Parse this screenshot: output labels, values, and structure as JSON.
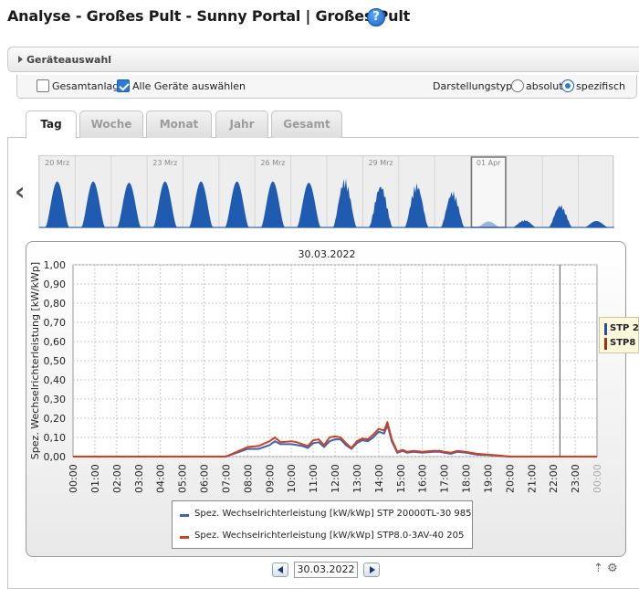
{
  "page": {
    "title": "Analyse - Großes Pult - Sunny Portal | Großes Pult",
    "help_icon": "question-mark-icon"
  },
  "device_selection": {
    "label": "Geräteauswahl"
  },
  "options": {
    "total_system_label": "Gesamtanlage",
    "total_system_checked": false,
    "select_all_label": "Alle Geräte auswählen",
    "select_all_checked": true,
    "display_type_label": "Darstellungstyp:",
    "absolute_label": "absolut",
    "specific_label": "spezifisch",
    "selected_display_type": "spezifisch"
  },
  "tabs": [
    {
      "label": "Tag",
      "active": true
    },
    {
      "label": "Woche",
      "active": false
    },
    {
      "label": "Monat",
      "active": false
    },
    {
      "label": "Jahr",
      "active": false
    },
    {
      "label": "Gesamt",
      "active": false
    }
  ],
  "overview": {
    "date_labels": [
      "20 Mrz",
      "23 Mrz",
      "26 Mrz",
      "29 Mrz",
      "01 Apr"
    ],
    "fill_color": "#1f5bb0",
    "day_peaks": [
      0.72,
      0.72,
      0.7,
      0.72,
      0.72,
      0.72,
      0.72,
      0.7,
      0.78,
      0.68,
      0.7,
      0.58,
      0.1,
      0.12,
      0.36,
      0.1
    ],
    "selected_day_index": 12,
    "prev_icon": "chevron-left-icon"
  },
  "chart_data": {
    "type": "line",
    "title": "30.03.2022",
    "ylabel": "Spez. Wechselrichterleistung [kW/kWp]",
    "ylim": [
      0,
      1
    ],
    "yticks": [
      "0,00",
      "0,10",
      "0,20",
      "0,30",
      "0,40",
      "0,50",
      "0,60",
      "0,70",
      "0,80",
      "0,90",
      "1,00"
    ],
    "x": [
      "00:00",
      "01:00",
      "02:00",
      "03:00",
      "04:00",
      "05:00",
      "06:00",
      "07:00",
      "08:00",
      "09:00",
      "10:00",
      "11:00",
      "12:00",
      "13:00",
      "14:00",
      "15:00",
      "16:00",
      "17:00",
      "18:00",
      "19:00",
      "20:00",
      "21:00",
      "22:00",
      "23:00",
      "00:00"
    ],
    "x_last_tick_faded": true,
    "marker_hour": 22.3,
    "series": [
      {
        "name": "Spez. Wechselrichterleistung [kW/kWp] STP 20000TL-30 985",
        "color": "#3a64b8",
        "points": [
          [
            0,
            0
          ],
          [
            7,
            0
          ],
          [
            7.5,
            0.02
          ],
          [
            8,
            0.04
          ],
          [
            8.5,
            0.04
          ],
          [
            9,
            0.06
          ],
          [
            9.25,
            0.08
          ],
          [
            9.5,
            0.065
          ],
          [
            10,
            0.065
          ],
          [
            10.25,
            0.06
          ],
          [
            10.5,
            0.055
          ],
          [
            10.75,
            0.045
          ],
          [
            11,
            0.07
          ],
          [
            11.25,
            0.075
          ],
          [
            11.5,
            0.05
          ],
          [
            11.75,
            0.08
          ],
          [
            12,
            0.09
          ],
          [
            12.25,
            0.09
          ],
          [
            12.5,
            0.06
          ],
          [
            12.75,
            0.04
          ],
          [
            13,
            0.07
          ],
          [
            13.25,
            0.085
          ],
          [
            13.5,
            0.08
          ],
          [
            13.75,
            0.1
          ],
          [
            14,
            0.13
          ],
          [
            14.25,
            0.12
          ],
          [
            14.4,
            0.165
          ],
          [
            14.6,
            0.08
          ],
          [
            14.85,
            0.02
          ],
          [
            15.1,
            0.03
          ],
          [
            15.3,
            0.02
          ],
          [
            15.6,
            0.025
          ],
          [
            16,
            0.02
          ],
          [
            16.5,
            0.025
          ],
          [
            16.8,
            0.025
          ],
          [
            17,
            0.02
          ],
          [
            17.3,
            0.015
          ],
          [
            17.6,
            0.025
          ],
          [
            18,
            0.02
          ],
          [
            18.5,
            0.01
          ],
          [
            19,
            0.008
          ],
          [
            19.5,
            0.004
          ],
          [
            20,
            0
          ],
          [
            24,
            0
          ]
        ]
      },
      {
        "name": "Spez. Wechselrichterleistung [kW/kWp] STP8.0-3AV-40 205",
        "color": "#d24020",
        "points": [
          [
            0,
            0
          ],
          [
            7,
            0
          ],
          [
            7.5,
            0.025
          ],
          [
            8,
            0.05
          ],
          [
            8.5,
            0.055
          ],
          [
            9,
            0.08
          ],
          [
            9.25,
            0.1
          ],
          [
            9.5,
            0.075
          ],
          [
            10,
            0.08
          ],
          [
            10.25,
            0.075
          ],
          [
            10.5,
            0.065
          ],
          [
            10.75,
            0.055
          ],
          [
            11,
            0.085
          ],
          [
            11.25,
            0.09
          ],
          [
            11.5,
            0.06
          ],
          [
            11.75,
            0.1
          ],
          [
            12,
            0.105
          ],
          [
            12.25,
            0.1
          ],
          [
            12.5,
            0.07
          ],
          [
            12.75,
            0.045
          ],
          [
            13,
            0.08
          ],
          [
            13.25,
            0.095
          ],
          [
            13.5,
            0.09
          ],
          [
            13.75,
            0.115
          ],
          [
            14,
            0.145
          ],
          [
            14.25,
            0.135
          ],
          [
            14.4,
            0.18
          ],
          [
            14.6,
            0.09
          ],
          [
            14.85,
            0.025
          ],
          [
            15.1,
            0.035
          ],
          [
            15.3,
            0.025
          ],
          [
            15.6,
            0.03
          ],
          [
            16,
            0.025
          ],
          [
            16.5,
            0.03
          ],
          [
            16.8,
            0.03
          ],
          [
            17,
            0.025
          ],
          [
            17.3,
            0.02
          ],
          [
            17.6,
            0.03
          ],
          [
            18,
            0.025
          ],
          [
            18.5,
            0.015
          ],
          [
            19,
            0.01
          ],
          [
            19.5,
            0.006
          ],
          [
            20,
            0
          ],
          [
            24,
            0
          ]
        ]
      }
    ],
    "grid": true,
    "legend_position": "bottom"
  },
  "tooltip": {
    "items": [
      {
        "label": "STP 2",
        "color": "#2a4e9a"
      },
      {
        "label": "STP8",
        "color": "#a0301a"
      }
    ]
  },
  "date_nav": {
    "date": "30.03.2022",
    "prev_icon": "arrow-left-icon",
    "next_icon": "arrow-right-icon"
  },
  "corner_icons": {
    "left": "expand-icon",
    "right": "settings-icon",
    "left_glyph": "⇡",
    "right_glyph": "⚙"
  }
}
